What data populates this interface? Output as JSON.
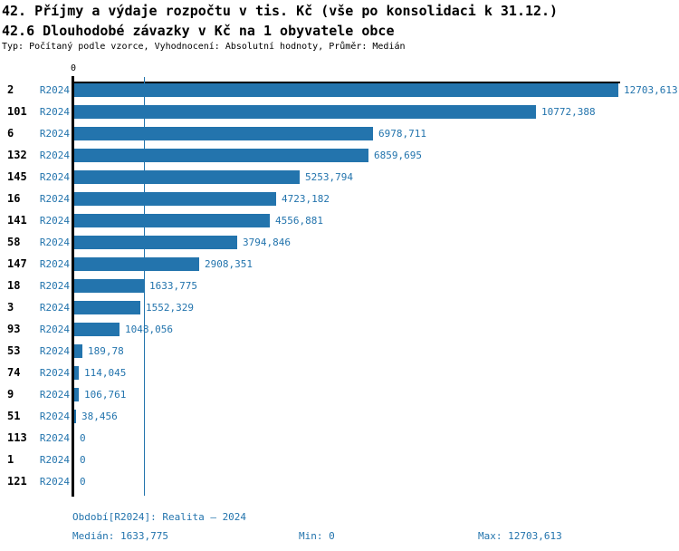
{
  "header": {
    "title_line1": "42. Příjmy a výdaje rozpočtu v tis. Kč (vše po konsolidaci k 31.12.)",
    "title_line2": "42.6 Dlouhodobé závazky v Kč na 1 obyvatele obce",
    "type_info": "Typ: Počítaný podle vzorce, Vyhodnocení: Absolutní hodnoty, Průměr: Medián"
  },
  "chart_data": {
    "type": "bar",
    "orientation": "horizontal",
    "title": "42.6 Dlouhodobé závazky v Kč na 1 obyvatele obce",
    "period_label": "R2024",
    "categories": [
      "2",
      "101",
      "6",
      "132",
      "145",
      "16",
      "141",
      "58",
      "147",
      "18",
      "3",
      "93",
      "53",
      "74",
      "9",
      "51",
      "113",
      "1",
      "121"
    ],
    "values": [
      12703.613,
      10772.388,
      6978.711,
      6859.695,
      5253.794,
      4723.182,
      4556.881,
      3794.846,
      2908.351,
      1633.775,
      1552.329,
      1048.056,
      189.78,
      114.045,
      106.761,
      38.456,
      0,
      0,
      0
    ],
    "value_labels": [
      "12703,613",
      "10772,388",
      "6978,711",
      "6859,695",
      "5253,794",
      "4723,182",
      "4556,881",
      "3794,846",
      "2908,351",
      "1633,775",
      "1552,329",
      "1048,056",
      "189,78",
      "114,045",
      "106,761",
      "38,456",
      "0",
      "0",
      "0"
    ],
    "axis_zero_label": "0",
    "xlim": [
      0,
      12703.613
    ],
    "median_line_value": 1633.775,
    "grid": "single median gridline",
    "legend_position": "none",
    "colors": {
      "bar": "#2374ad",
      "value_text": "#2374ad",
      "axis": "#000000",
      "category_text": "#000000"
    }
  },
  "footer": {
    "period_info": "Období[R2024]: Realita – 2024",
    "median": "Medián: 1633,775",
    "min": "Min: 0",
    "max": "Max: 12703,613"
  }
}
